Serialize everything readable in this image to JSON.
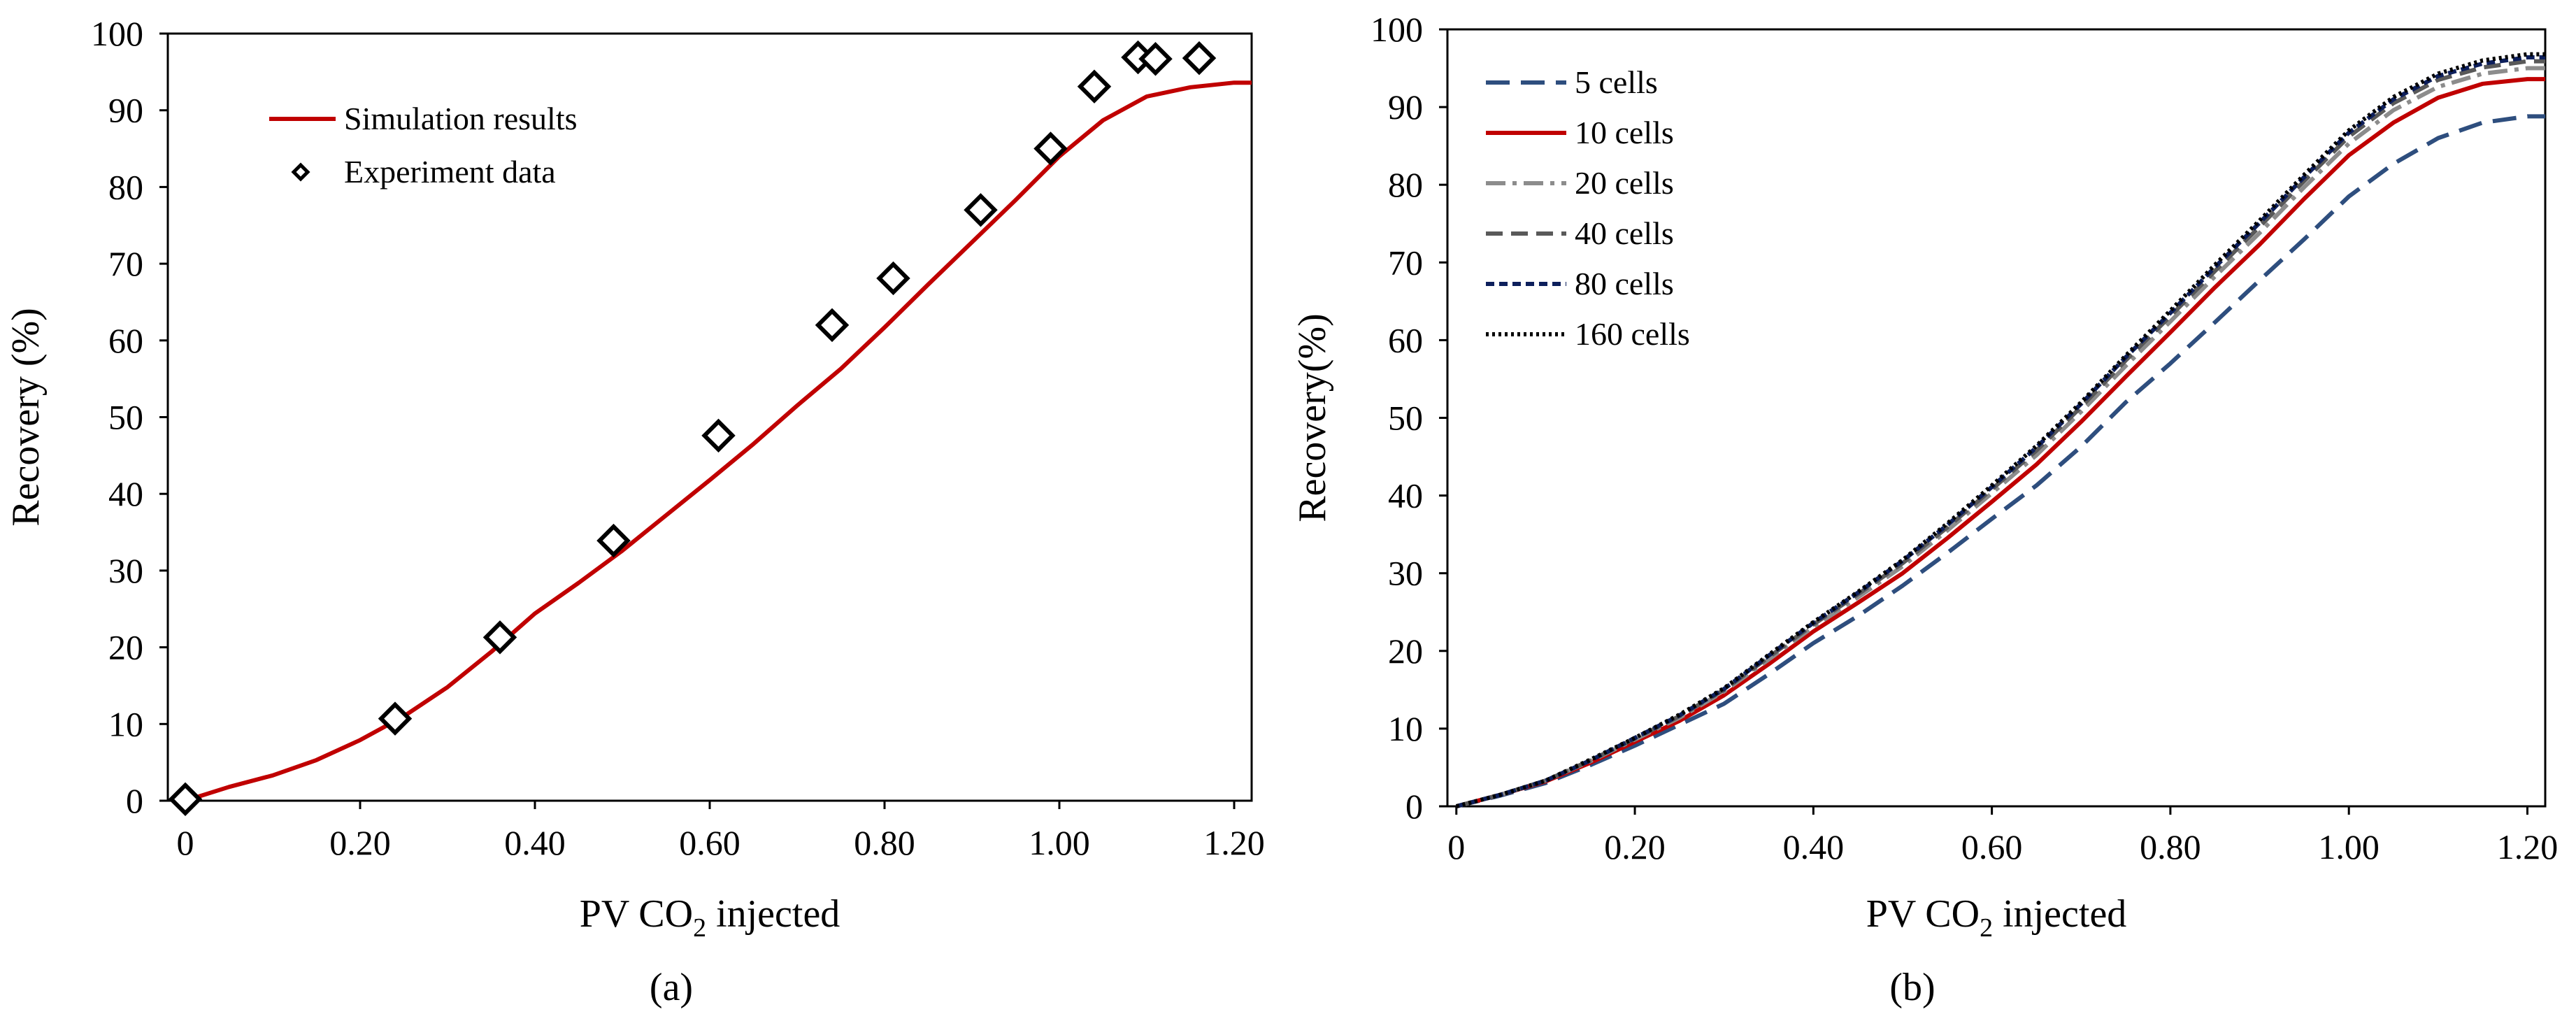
{
  "figure": {
    "panels": [
      {
        "caption": "(a)"
      },
      {
        "caption": "(b)"
      }
    ]
  },
  "chart_data": [
    {
      "type": "line",
      "panel": "a",
      "title": "",
      "xlabel_main": "PV CO",
      "xlabel_sub": "2",
      "xlabel_rest": " injected",
      "ylabel": "Recovery (%)",
      "xlim": [
        -0.02,
        1.22
      ],
      "ylim": [
        0,
        100
      ],
      "xticks": [
        0,
        0.2,
        0.4,
        0.6,
        0.8,
        1.0,
        1.2
      ],
      "xtick_labels": [
        "0",
        "0.20",
        "0.40",
        "0.60",
        "0.80",
        "1.00",
        "1.20"
      ],
      "yticks": [
        0,
        10,
        20,
        30,
        40,
        50,
        60,
        70,
        80,
        90,
        100
      ],
      "ytick_labels": [
        "0",
        "10",
        "20",
        "30",
        "40",
        "50",
        "60",
        "70",
        "80",
        "90",
        "100"
      ],
      "legend_position": "top-left",
      "series": [
        {
          "name": "Simulation results",
          "kind": "line",
          "color": "#c00000",
          "dash": "",
          "x": [
            0,
            0.05,
            0.1,
            0.15,
            0.2,
            0.25,
            0.3,
            0.35,
            0.4,
            0.45,
            0.5,
            0.55,
            0.6,
            0.65,
            0.7,
            0.75,
            0.8,
            0.85,
            0.9,
            0.95,
            1.0,
            1.05,
            1.1,
            1.15,
            1.2,
            1.22
          ],
          "y": [
            0,
            1.8,
            3.3,
            5.3,
            7.9,
            11.0,
            14.8,
            19.4,
            24.4,
            28.4,
            32.6,
            37.2,
            41.8,
            46.5,
            51.5,
            56.3,
            61.7,
            67.3,
            72.8,
            78.3,
            84.0,
            88.7,
            91.8,
            93.0,
            93.6,
            93.6
          ]
        },
        {
          "name": "Experiment data",
          "kind": "marker",
          "marker": "diamond",
          "color": "#000000",
          "x": [
            0.0,
            0.24,
            0.36,
            0.49,
            0.61,
            0.74,
            0.81,
            0.91,
            0.99,
            1.04,
            1.09,
            1.11,
            1.16
          ],
          "y": [
            0.2,
            10.7,
            21.3,
            33.9,
            47.6,
            62.0,
            68.1,
            77.0,
            85.0,
            93.1,
            96.9,
            96.7,
            96.8
          ]
        }
      ]
    },
    {
      "type": "line",
      "panel": "b",
      "title": "",
      "xlabel_main": "PV CO",
      "xlabel_sub": "2",
      "xlabel_rest": " injected",
      "ylabel": "Recovery(%)",
      "xlim": [
        -0.01,
        1.22
      ],
      "ylim": [
        0,
        100
      ],
      "xticks": [
        0,
        0.2,
        0.4,
        0.6,
        0.8,
        1.0,
        1.2
      ],
      "xtick_labels": [
        "0",
        "0.20",
        "0.40",
        "0.60",
        "0.80",
        "1.00",
        "1.20"
      ],
      "yticks": [
        0,
        10,
        20,
        30,
        40,
        50,
        60,
        70,
        80,
        90,
        100
      ],
      "ytick_labels": [
        "0",
        "10",
        "20",
        "30",
        "40",
        "50",
        "60",
        "70",
        "80",
        "90",
        "100"
      ],
      "legend_position": "top-left",
      "series": [
        {
          "name": "5 cells",
          "kind": "line",
          "color": "#2e4e7e",
          "dash": "34 16",
          "x": [
            0,
            0.05,
            0.1,
            0.15,
            0.2,
            0.25,
            0.3,
            0.35,
            0.4,
            0.45,
            0.5,
            0.55,
            0.6,
            0.65,
            0.7,
            0.75,
            0.8,
            0.85,
            0.9,
            0.95,
            1.0,
            1.05,
            1.1,
            1.15,
            1.2,
            1.22
          ],
          "y": [
            0,
            1.4,
            3.0,
            5.3,
            7.8,
            10.5,
            13.2,
            17.0,
            21.0,
            24.5,
            28.4,
            32.6,
            37.0,
            41.3,
            46.3,
            52.0,
            57.0,
            62.3,
            67.7,
            73.0,
            78.5,
            82.7,
            86.0,
            88.0,
            88.8,
            88.8
          ]
        },
        {
          "name": "10 cells",
          "kind": "line",
          "color": "#c00000",
          "dash": "",
          "x": [
            0,
            0.05,
            0.1,
            0.15,
            0.2,
            0.25,
            0.3,
            0.35,
            0.4,
            0.45,
            0.5,
            0.55,
            0.6,
            0.65,
            0.7,
            0.75,
            0.8,
            0.85,
            0.9,
            0.95,
            1.0,
            1.05,
            1.1,
            1.15,
            1.2,
            1.22
          ],
          "y": [
            0,
            1.5,
            3.2,
            5.6,
            8.3,
            11.0,
            14.3,
            18.3,
            22.5,
            26.2,
            30.0,
            34.5,
            39.2,
            44.0,
            49.5,
            55.3,
            61.0,
            66.8,
            72.3,
            78.2,
            83.8,
            88.0,
            91.2,
            93.0,
            93.6,
            93.6
          ]
        },
        {
          "name": "20 cells",
          "kind": "line",
          "color": "#8c8c8c",
          "dash": "28 10 6 10",
          "x": [
            0,
            0.05,
            0.1,
            0.15,
            0.2,
            0.25,
            0.3,
            0.35,
            0.4,
            0.45,
            0.5,
            0.55,
            0.6,
            0.65,
            0.7,
            0.75,
            0.8,
            0.85,
            0.9,
            0.95,
            1.0,
            1.05,
            1.1,
            1.15,
            1.2,
            1.22
          ],
          "y": [
            0,
            1.5,
            3.3,
            5.8,
            8.6,
            11.4,
            14.8,
            18.9,
            23.1,
            26.9,
            30.9,
            35.5,
            40.3,
            45.2,
            50.8,
            56.7,
            62.4,
            68.2,
            73.8,
            79.7,
            85.3,
            89.6,
            92.6,
            94.3,
            95.0,
            95.0
          ]
        },
        {
          "name": "40 cells",
          "kind": "line",
          "color": "#595959",
          "dash": "24 12",
          "x": [
            0,
            0.05,
            0.1,
            0.15,
            0.2,
            0.25,
            0.3,
            0.35,
            0.4,
            0.45,
            0.5,
            0.55,
            0.6,
            0.65,
            0.7,
            0.75,
            0.8,
            0.85,
            0.9,
            0.95,
            1.0,
            1.05,
            1.1,
            1.15,
            1.2,
            1.22
          ],
          "y": [
            0,
            1.5,
            3.3,
            5.9,
            8.7,
            11.6,
            15.0,
            19.2,
            23.4,
            27.3,
            31.3,
            35.9,
            40.8,
            45.8,
            51.4,
            57.4,
            63.1,
            68.9,
            74.6,
            80.5,
            86.2,
            90.5,
            93.5,
            95.1,
            95.9,
            95.9
          ]
        },
        {
          "name": "80 cells",
          "kind": "line",
          "color": "#0d1f5c",
          "dash": "12 7",
          "x": [
            0,
            0.05,
            0.1,
            0.15,
            0.2,
            0.25,
            0.3,
            0.35,
            0.4,
            0.45,
            0.5,
            0.55,
            0.6,
            0.65,
            0.7,
            0.75,
            0.8,
            0.85,
            0.9,
            0.95,
            1.0,
            1.05,
            1.1,
            1.15,
            1.2,
            1.22
          ],
          "y": [
            0,
            1.5,
            3.3,
            5.9,
            8.8,
            11.7,
            15.1,
            19.4,
            23.6,
            27.5,
            31.6,
            36.2,
            41.1,
            46.2,
            51.8,
            57.8,
            63.5,
            69.4,
            75.1,
            81.0,
            86.7,
            91.0,
            94.0,
            95.6,
            96.4,
            96.4
          ]
        },
        {
          "name": "160 cells",
          "kind": "line",
          "color": "#000000",
          "dash": "4 5",
          "x": [
            0,
            0.05,
            0.1,
            0.15,
            0.2,
            0.25,
            0.3,
            0.35,
            0.4,
            0.45,
            0.5,
            0.55,
            0.6,
            0.65,
            0.7,
            0.75,
            0.8,
            0.85,
            0.9,
            0.95,
            1.0,
            1.05,
            1.1,
            1.15,
            1.2,
            1.22
          ],
          "y": [
            0,
            1.5,
            3.3,
            6.0,
            8.8,
            11.8,
            15.2,
            19.5,
            23.7,
            27.6,
            31.7,
            36.4,
            41.3,
            46.4,
            52.0,
            58.0,
            63.8,
            69.7,
            75.4,
            81.3,
            87.0,
            91.3,
            94.3,
            96.0,
            96.8,
            96.8
          ]
        }
      ]
    }
  ]
}
